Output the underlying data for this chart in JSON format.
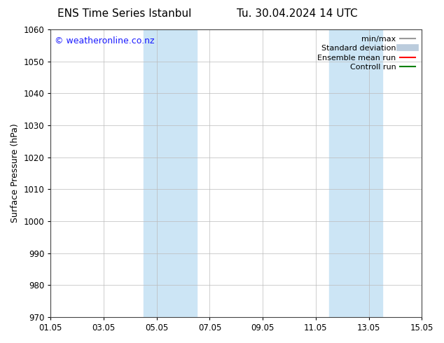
{
  "title_left": "ENS Time Series Istanbul",
  "title_right": "Tu. 30.04.2024 14 UTC",
  "ylabel": "Surface Pressure (hPa)",
  "ylim": [
    970,
    1060
  ],
  "yticks": [
    970,
    980,
    990,
    1000,
    1010,
    1020,
    1030,
    1040,
    1050,
    1060
  ],
  "xtick_labels": [
    "01.05",
    "03.05",
    "05.05",
    "07.05",
    "09.05",
    "11.05",
    "13.05",
    "15.05"
  ],
  "xtick_positions": [
    0,
    2,
    4,
    6,
    8,
    10,
    12,
    14
  ],
  "xlim": [
    0,
    14
  ],
  "shaded_bands": [
    {
      "x_start": 3.5,
      "x_end": 5.5,
      "color": "#cce5f5"
    },
    {
      "x_start": 10.5,
      "x_end": 12.5,
      "color": "#cce5f5"
    }
  ],
  "watermark_text": "© weatheronline.co.nz",
  "watermark_color": "#1a1aff",
  "watermark_fontsize": 9,
  "bg_color": "#ffffff",
  "legend_items": [
    {
      "label": "min/max",
      "color": "#999999",
      "lw": 1.5,
      "style": "solid"
    },
    {
      "label": "Standard deviation",
      "color": "#bbccdd",
      "lw": 7,
      "style": "solid"
    },
    {
      "label": "Ensemble mean run",
      "color": "#ff0000",
      "lw": 1.5,
      "style": "solid"
    },
    {
      "label": "Controll run",
      "color": "#008000",
      "lw": 1.5,
      "style": "solid"
    }
  ],
  "grid_color": "#bbbbbb",
  "title_fontsize": 11,
  "axis_fontsize": 9,
  "tick_fontsize": 8.5,
  "legend_fontsize": 8
}
